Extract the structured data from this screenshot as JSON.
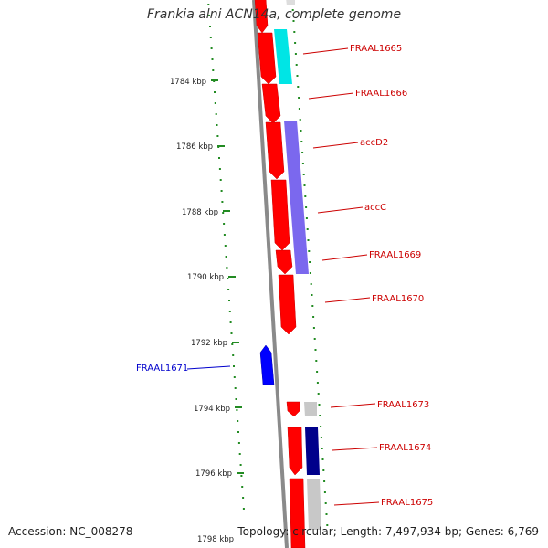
{
  "header": {
    "title": "Frankia alni ACN14a, complete genome"
  },
  "footer": {
    "accession_label": "Accession:",
    "accession": "NC_008278",
    "topology_label": "Topology:",
    "topology": "circular",
    "length_label": "Length:",
    "length": "7,497,934 bp",
    "genes_label": "Genes:",
    "genes": "6,769"
  },
  "colors": {
    "forward_cds": "#ff0000",
    "reverse_cds": "#0000ff",
    "cyan_feature": "#00e5e5",
    "purple_feature": "#7b68ee",
    "navy_feature": "#00008b",
    "gray_feature": "#c8c8c8",
    "backbone": "#888888",
    "tick_marks": "#228b22",
    "label_forward": "#cc0000",
    "label_reverse": "#0000cc"
  },
  "ticks": [
    "1784 kbp",
    "1786 kbp",
    "1788 kbp",
    "1790 kbp",
    "1792 kbp",
    "1794 kbp",
    "1796 kbp",
    "1798 kbp"
  ],
  "genes": [
    {
      "label": "FRAAL1665",
      "strand": "forward"
    },
    {
      "label": "FRAAL1666",
      "strand": "forward"
    },
    {
      "label": "accD2",
      "strand": "forward"
    },
    {
      "label": "accC",
      "strand": "forward"
    },
    {
      "label": "FRAAL1669",
      "strand": "forward"
    },
    {
      "label": "FRAAL1670",
      "strand": "forward"
    },
    {
      "label": "FRAAL1671",
      "strand": "reverse"
    },
    {
      "label": "FRAAL1673",
      "strand": "forward"
    },
    {
      "label": "FRAAL1674",
      "strand": "forward"
    },
    {
      "label": "FRAAL1675",
      "strand": "forward"
    }
  ]
}
